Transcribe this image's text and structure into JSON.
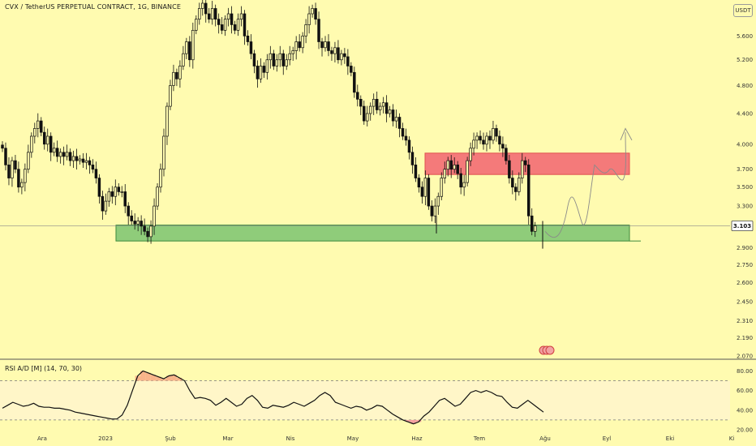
{
  "header": {
    "title": "CVX / TetherUS PERPETUAL CONTRACT, 1G, BINANCE",
    "currency": "USDT"
  },
  "price_axis": {
    "ticks": [
      "5.600",
      "5.200",
      "4.800",
      "4.400",
      "4.000",
      "3.700",
      "3.500",
      "3.300",
      "3.103",
      "2.900",
      "2.750",
      "2.600",
      "2.450",
      "2.310",
      "2.190",
      "2.070"
    ],
    "current_price": "3.103"
  },
  "rsi": {
    "title": "RSI A/D [M] (14, 70, 30)",
    "ticks": [
      "80.00",
      "60.00",
      "40.00",
      "20.00"
    ]
  },
  "time_axis": {
    "labels": [
      "Ara",
      "2023",
      "Şub",
      "Mar",
      "Nis",
      "May",
      "Haz",
      "Tem",
      "Ağu",
      "Eyl",
      "Eki",
      "Ki"
    ]
  },
  "colors": {
    "background": "#fffbb0",
    "up_candle": "#111111",
    "resistance_zone": "#f47a7a",
    "support_zone": "#8fcc7a",
    "rsi_band": "#fff6c8",
    "rsi_overbought": "#f8b48a",
    "rsi_oversold": "#f3a0a0"
  },
  "chart_data": {
    "type": "candlestick",
    "title": "CVX / TetherUS PERPETUAL CONTRACT, 1G, BINANCE",
    "y_scale": "log",
    "ylim": [
      2.07,
      6.2
    ],
    "current_price": 3.103,
    "closes": [
      3.95,
      3.75,
      3.6,
      3.8,
      3.7,
      3.5,
      3.55,
      3.7,
      3.9,
      4.1,
      4.2,
      4.3,
      4.15,
      4.0,
      4.1,
      3.9,
      3.95,
      3.85,
      3.9,
      3.85,
      3.9,
      3.8,
      3.85,
      3.8,
      3.82,
      3.78,
      3.8,
      3.75,
      3.7,
      3.6,
      3.4,
      3.25,
      3.35,
      3.45,
      3.4,
      3.5,
      3.45,
      3.45,
      3.3,
      3.2,
      3.15,
      3.12,
      3.15,
      3.1,
      3.05,
      3.0,
      3.1,
      3.3,
      3.5,
      3.7,
      4.1,
      4.5,
      4.8,
      5.0,
      4.9,
      5.1,
      5.3,
      5.5,
      5.2,
      5.7,
      5.9,
      6.1,
      6.2,
      6.0,
      5.9,
      6.1,
      5.9,
      5.8,
      5.7,
      5.9,
      6.0,
      5.8,
      5.7,
      5.9,
      6.0,
      5.6,
      5.5,
      5.3,
      5.1,
      4.9,
      5.1,
      5.0,
      5.2,
      5.3,
      5.1,
      5.2,
      5.3,
      5.1,
      5.2,
      5.3,
      5.35,
      5.5,
      5.4,
      5.6,
      5.8,
      6.0,
      6.1,
      5.9,
      5.5,
      5.4,
      5.5,
      5.35,
      5.3,
      5.4,
      5.2,
      5.3,
      5.25,
      5.1,
      5.0,
      4.7,
      4.6,
      4.5,
      4.3,
      4.4,
      4.5,
      4.6,
      4.45,
      4.5,
      4.55,
      4.4,
      4.45,
      4.3,
      4.35,
      4.2,
      4.1,
      4.05,
      3.9,
      3.75,
      3.6,
      3.5,
      3.4,
      3.6,
      3.3,
      3.2,
      3.3,
      3.4,
      3.6,
      3.7,
      3.8,
      3.7,
      3.75,
      3.65,
      3.5,
      3.55,
      3.8,
      3.95,
      4.05,
      4.1,
      4.05,
      4.0,
      4.1,
      4.05,
      4.2,
      4.1,
      4.0,
      3.95,
      3.8,
      3.6,
      3.5,
      3.45,
      3.6,
      3.8,
      3.75,
      3.2,
      3.05,
      3.103
    ],
    "resistance_zone": [
      3.64,
      3.89
    ],
    "support_zone": [
      2.96,
      3.11
    ],
    "projection_note_visible": false,
    "rsi": {
      "title": "RSI A/D [M] (14, 70, 30)",
      "ylim": [
        20,
        82
      ],
      "levels": [
        70,
        30
      ],
      "values": [
        42,
        45,
        48,
        46,
        44,
        45,
        47,
        44,
        43,
        43,
        42,
        42,
        41,
        40,
        38,
        37,
        36,
        35,
        34,
        33,
        32,
        31,
        31,
        35,
        45,
        60,
        75,
        80,
        78,
        76,
        74,
        72,
        75,
        76,
        73,
        70,
        60,
        52,
        53,
        52,
        50,
        45,
        48,
        52,
        48,
        44,
        46,
        52,
        55,
        50,
        43,
        42,
        45,
        44,
        43,
        45,
        48,
        46,
        44,
        47,
        50,
        55,
        58,
        55,
        48,
        46,
        44,
        42,
        44,
        43,
        40,
        42,
        45,
        44,
        40,
        36,
        33,
        30,
        28,
        26,
        28,
        34,
        38,
        44,
        50,
        52,
        48,
        44,
        46,
        52,
        58,
        60,
        58,
        60,
        58,
        55,
        54,
        48,
        43,
        42,
        46,
        50,
        46,
        42,
        38
      ]
    },
    "x_labels": [
      "Ara",
      "2023",
      "Şub",
      "Mar",
      "Nis",
      "May",
      "Haz",
      "Tem",
      "Ağu",
      "Eyl",
      "Eki",
      "Ki"
    ]
  }
}
